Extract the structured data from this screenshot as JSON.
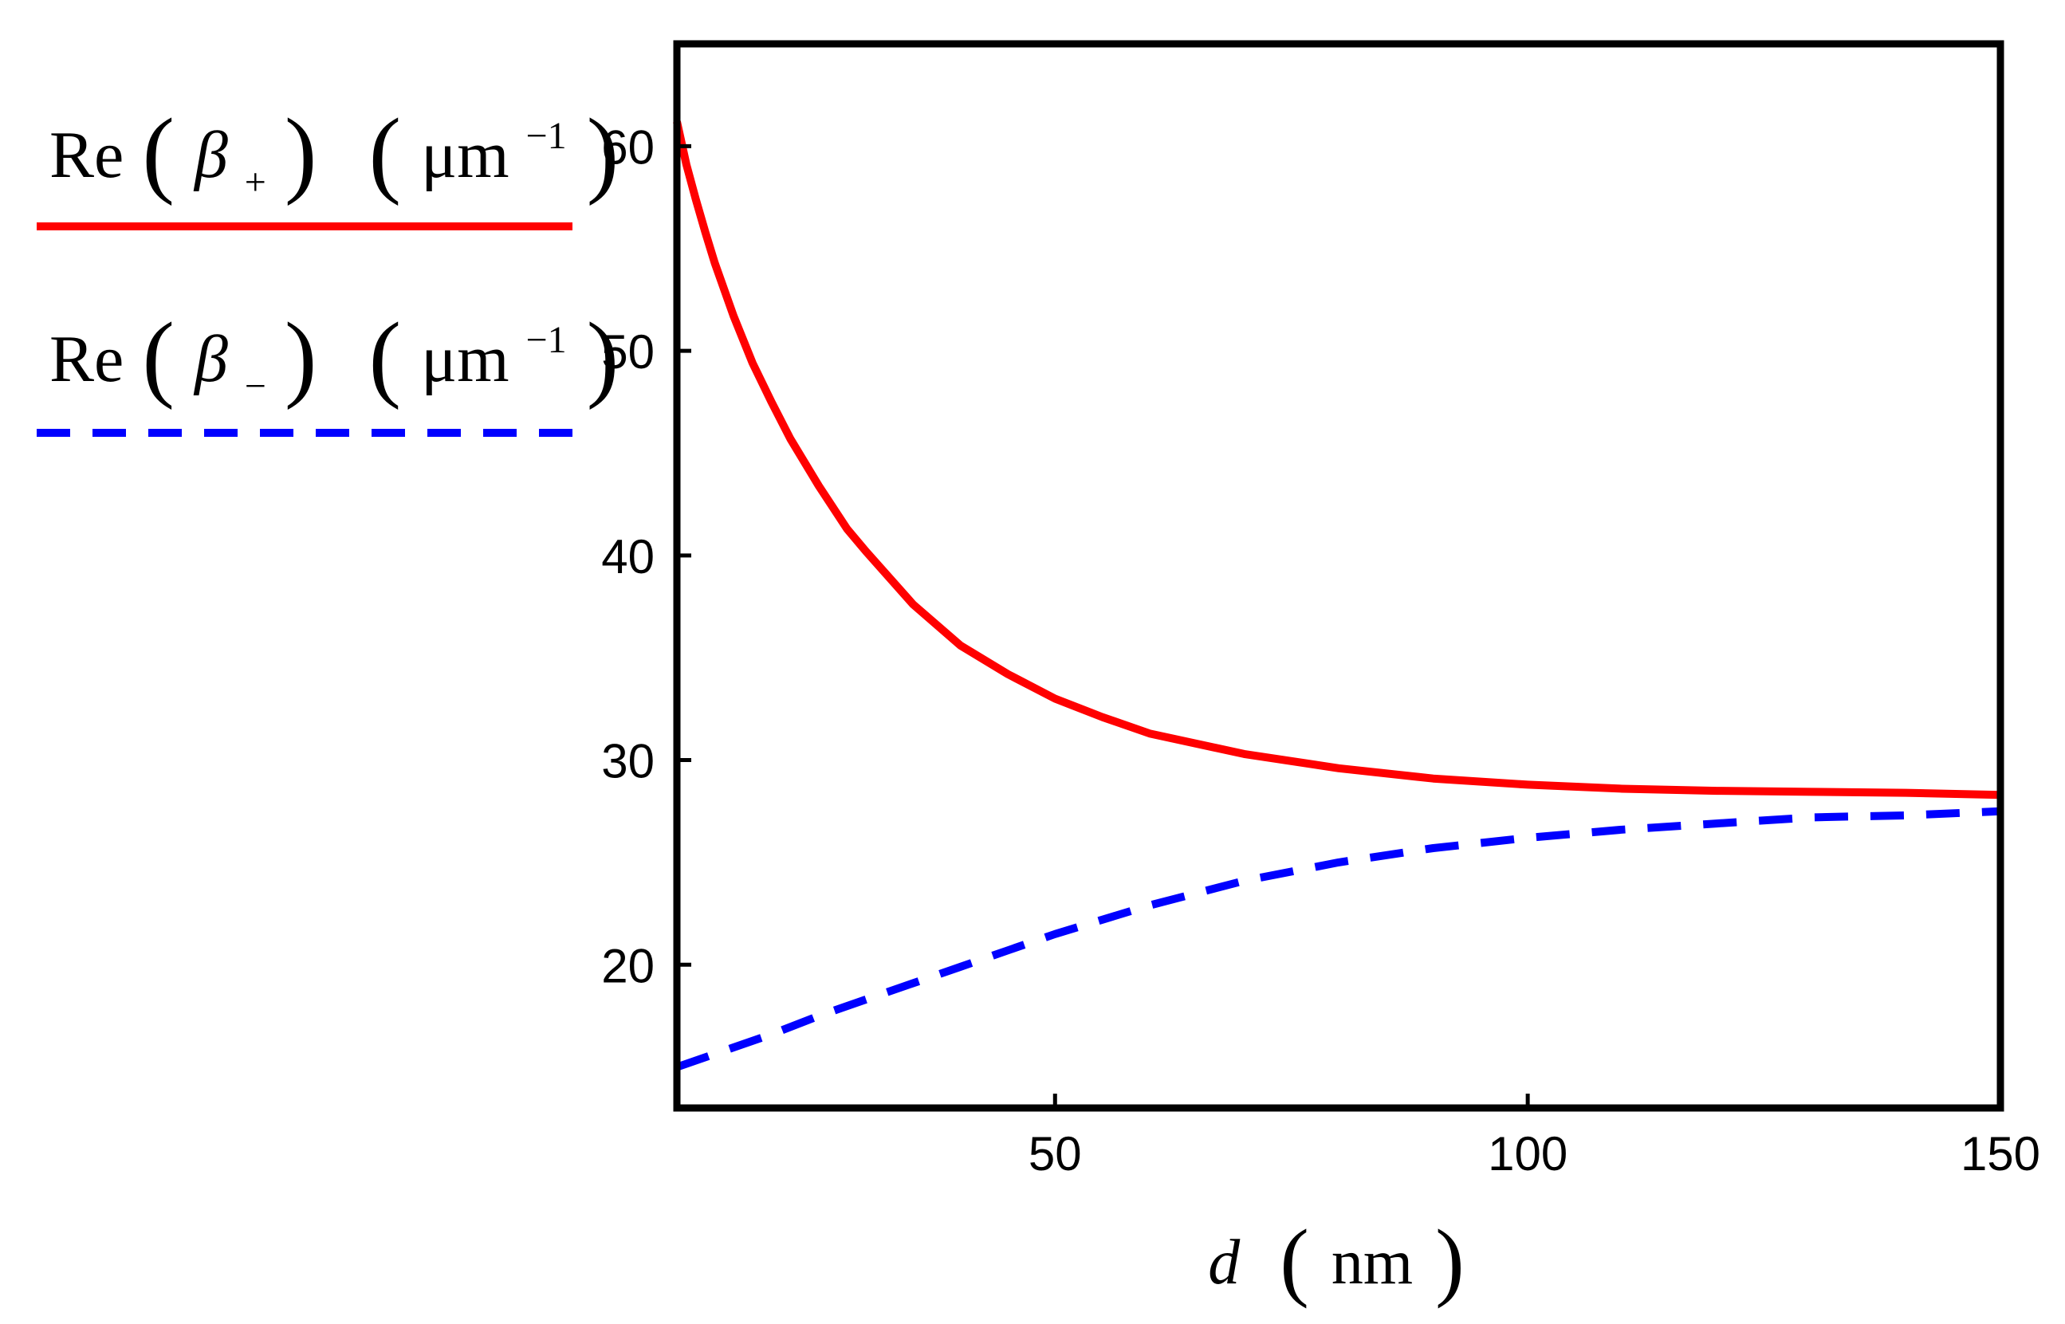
{
  "chart_data": {
    "type": "line",
    "title": "",
    "xlabel": {
      "var": "d",
      "unit": "nm"
    },
    "ylabel": "",
    "xlim": [
      10,
      150
    ],
    "ylim": [
      13,
      65
    ],
    "xticks": [
      50,
      100,
      150
    ],
    "xtick_labels": [
      "50",
      "100",
      "150"
    ],
    "yticks": [
      20,
      30,
      40,
      50,
      60
    ],
    "ytick_labels": [
      "20",
      "30",
      "40",
      "50",
      "60"
    ],
    "grid": false,
    "legend_position": "outside-top-left",
    "series": [
      {
        "name": "Re(β+) (μm−1)",
        "legend_prefix": "Re",
        "legend_symbol": "β",
        "legend_subscript": "+",
        "legend_unit": "μm",
        "legend_unit_exp": "−1",
        "color": "#ff0000",
        "style": "solid",
        "x": [
          10,
          11,
          12,
          13,
          14,
          16,
          18,
          20,
          22,
          25,
          28,
          30,
          35,
          40,
          45,
          50,
          55,
          60,
          70,
          80,
          90,
          100,
          110,
          120,
          130,
          140,
          150
        ],
        "y": [
          61.2,
          59.1,
          57.4,
          55.8,
          54.3,
          51.7,
          49.4,
          47.5,
          45.7,
          43.4,
          41.3,
          40.2,
          37.6,
          35.6,
          34.2,
          33.0,
          32.1,
          31.3,
          30.3,
          29.6,
          29.1,
          28.8,
          28.6,
          28.5,
          28.45,
          28.4,
          28.3
        ]
      },
      {
        "name": "Re(β−) (μm−1)",
        "legend_prefix": "Re",
        "legend_symbol": "β",
        "legend_subscript": "−",
        "legend_unit": "μm",
        "legend_unit_exp": "−1",
        "color": "#0000ff",
        "style": "dashed",
        "x": [
          10,
          15,
          20,
          25,
          30,
          35,
          40,
          45,
          50,
          55,
          60,
          70,
          80,
          90,
          100,
          110,
          120,
          130,
          140,
          150
        ],
        "y": [
          15.0,
          15.8,
          16.6,
          17.5,
          18.3,
          19.1,
          19.9,
          20.7,
          21.5,
          22.2,
          22.9,
          24.1,
          25.0,
          25.7,
          26.2,
          26.6,
          26.9,
          27.2,
          27.3,
          27.5
        ]
      }
    ]
  }
}
